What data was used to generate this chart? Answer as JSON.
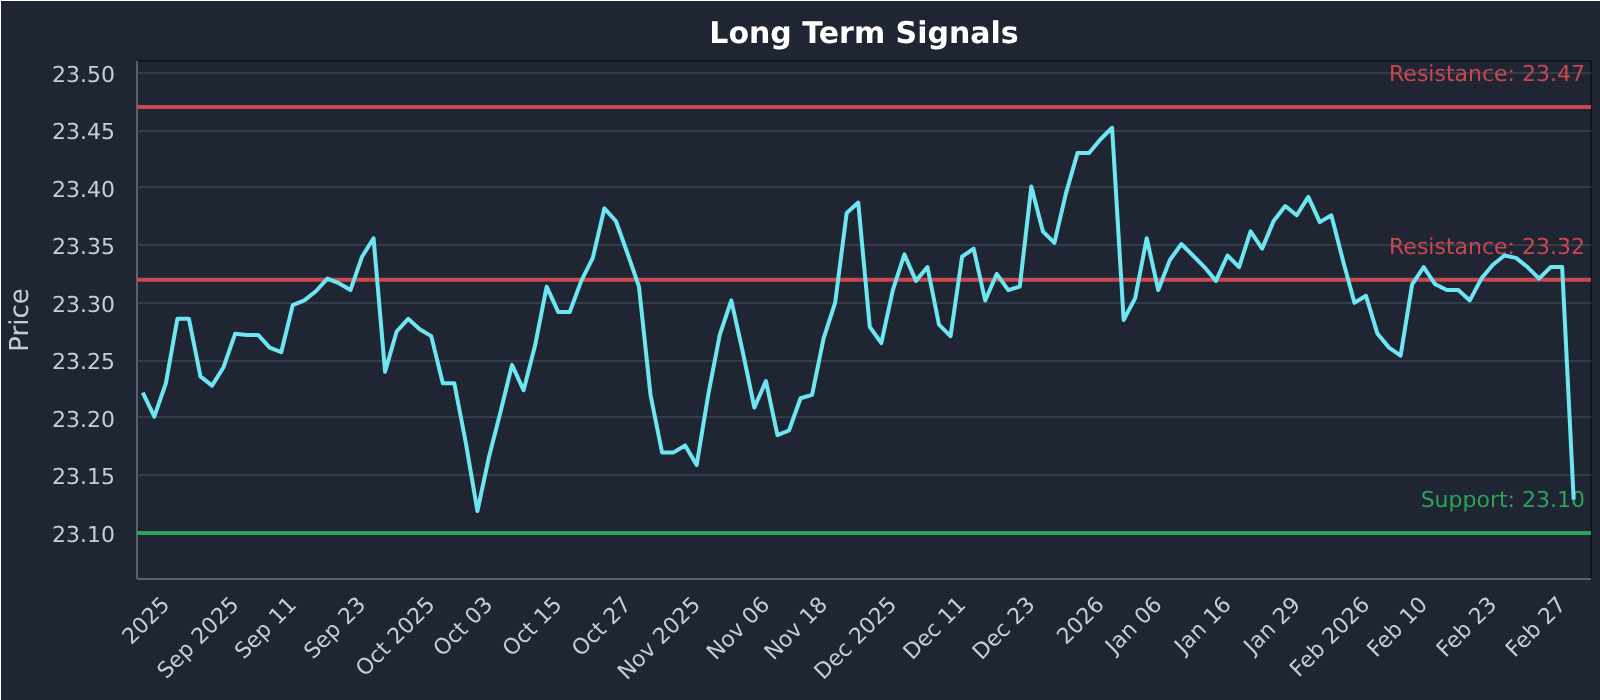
{
  "chart_data": {
    "type": "line",
    "title": "Long Term Signals",
    "ylabel": "Price",
    "categories": [
      null,
      null,
      "2025",
      null,
      null,
      null,
      null,
      null,
      "Sep 2025",
      null,
      null,
      null,
      null,
      "Sep 11",
      null,
      null,
      null,
      null,
      null,
      "Sep 23",
      null,
      null,
      null,
      null,
      null,
      "Oct 2025",
      null,
      null,
      null,
      null,
      "Oct 03",
      null,
      null,
      null,
      null,
      null,
      "Oct 15",
      null,
      null,
      null,
      null,
      null,
      "Oct 27",
      null,
      null,
      null,
      null,
      null,
      "Nov 2025",
      null,
      null,
      null,
      null,
      null,
      "Nov 06",
      null,
      null,
      null,
      null,
      "Nov 18",
      null,
      null,
      null,
      null,
      null,
      "Dec 2025",
      null,
      null,
      null,
      null,
      null,
      "Dec 11",
      null,
      null,
      null,
      null,
      null,
      "Dec 23",
      null,
      null,
      null,
      null,
      null,
      "2026",
      null,
      null,
      null,
      null,
      "Jan 06",
      null,
      null,
      null,
      null,
      null,
      "Jan 16",
      null,
      null,
      null,
      null,
      null,
      "Jan 29",
      null,
      null,
      null,
      null,
      null,
      "Feb 2026",
      null,
      null,
      null,
      null,
      "Feb 10",
      null,
      null,
      null,
      null,
      null,
      "Feb 23",
      null,
      null,
      null,
      null,
      null,
      "Feb 27",
      null
    ],
    "series": [
      {
        "color": "#6ee6f2",
        "values": [
          23.222,
          23.201,
          23.23,
          23.286,
          23.286,
          23.236,
          23.228,
          23.244,
          23.273,
          23.272,
          23.272,
          23.261,
          23.257,
          23.298,
          23.302,
          23.31,
          23.321,
          23.317,
          23.311,
          23.34,
          23.356,
          23.24,
          23.275,
          23.286,
          23.277,
          23.271,
          23.23,
          23.23,
          23.178,
          23.119,
          23.166,
          23.205,
          23.246,
          23.224,
          23.263,
          23.314,
          23.292,
          23.292,
          23.319,
          23.339,
          23.382,
          23.371,
          23.343,
          23.314,
          23.22,
          23.17,
          23.17,
          23.176,
          23.159,
          23.22,
          23.272,
          23.302,
          23.257,
          23.209,
          23.232,
          23.185,
          23.189,
          23.217,
          23.22,
          23.269,
          23.3,
          23.378,
          23.387,
          23.279,
          23.265,
          23.311,
          23.342,
          23.319,
          23.331,
          23.281,
          23.271,
          23.34,
          23.347,
          23.302,
          23.325,
          23.311,
          23.314,
          23.401,
          23.362,
          23.352,
          23.395,
          23.43,
          23.43,
          23.442,
          23.452,
          23.285,
          23.304,
          23.356,
          23.311,
          23.337,
          23.351,
          23.341,
          23.331,
          23.319,
          23.341,
          23.331,
          23.362,
          23.347,
          23.371,
          23.384,
          23.376,
          23.392,
          23.37,
          23.376,
          23.337,
          23.3,
          23.306,
          23.273,
          23.261,
          23.254,
          23.316,
          23.331,
          23.316,
          23.311,
          23.311,
          23.302,
          23.321,
          23.333,
          23.341,
          23.339,
          23.331,
          23.321,
          23.331,
          23.331,
          23.129
        ]
      }
    ],
    "ylim": [
      23.06,
      23.51
    ],
    "yticks": [
      {
        "value": 23.1,
        "label": "23.10"
      },
      {
        "value": 23.15,
        "label": "23.15"
      },
      {
        "value": 23.2,
        "label": "23.20"
      },
      {
        "value": 23.25,
        "label": "23.25"
      },
      {
        "value": 23.3,
        "label": "23.30"
      },
      {
        "value": 23.35,
        "label": "23.35"
      },
      {
        "value": 23.4,
        "label": "23.40"
      },
      {
        "value": 23.45,
        "label": "23.45"
      },
      {
        "value": 23.5,
        "label": "23.50"
      }
    ],
    "ref_lines": [
      {
        "axis": "y",
        "value": 23.47,
        "label": "Resistance: 23.47",
        "color": "#c9474f"
      },
      {
        "axis": "y",
        "value": 23.32,
        "label": "Resistance: 23.32",
        "color": "#c9474f"
      },
      {
        "axis": "y",
        "value": 23.1,
        "label": "Support: 23.10",
        "color": "#2aa45a"
      }
    ],
    "grid": "y",
    "line_style": "solid"
  }
}
